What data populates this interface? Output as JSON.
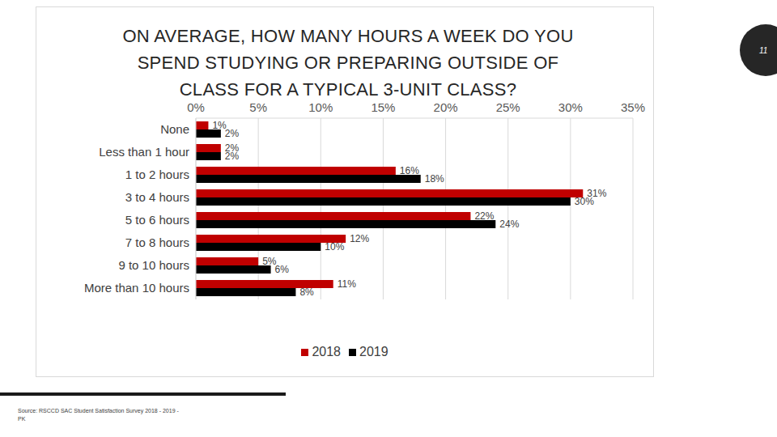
{
  "chart_data": {
    "type": "bar",
    "orientation": "horizontal",
    "title": "ON AVERAGE, HOW MANY HOURS A WEEK DO YOU SPEND STUDYING OR PREPARING OUTSIDE OF CLASS FOR A TYPICAL 3-UNIT CLASS?",
    "categories": [
      "None",
      "Less than 1 hour",
      "1 to 2 hours",
      "3 to 4 hours",
      "5 to 6 hours",
      "7 to 8 hours",
      "9 to 10 hours",
      "More than 10 hours"
    ],
    "series": [
      {
        "name": "2018",
        "color": "#c00000",
        "values": [
          1,
          2,
          16,
          31,
          22,
          12,
          5,
          11
        ],
        "value_labels": [
          "1%",
          "2%",
          "16%",
          "31%",
          "22%",
          "12%",
          "5%",
          "11%"
        ]
      },
      {
        "name": "2019",
        "color": "#000000",
        "values": [
          2,
          2,
          18,
          30,
          24,
          10,
          6,
          8
        ],
        "value_labels": [
          "2%",
          "2%",
          "18%",
          "30%",
          "24%",
          "10%",
          "6%",
          "8%"
        ]
      }
    ],
    "xlim": [
      0,
      35
    ],
    "xticks": [
      {
        "value": 0,
        "label": "0%"
      },
      {
        "value": 5,
        "label": "5%"
      },
      {
        "value": 10,
        "label": "10%"
      },
      {
        "value": 15,
        "label": "15%"
      },
      {
        "value": 20,
        "label": "20%"
      },
      {
        "value": 25,
        "label": "25%"
      },
      {
        "value": 30,
        "label": "30%"
      },
      {
        "value": 35,
        "label": "35%"
      }
    ],
    "grid": true,
    "legend": "bottom",
    "data_labels": true
  },
  "slide": {
    "page_number": "11",
    "source": "Source: RSCCD SAC Student Satisfaction Survey 2018 - 2019 - PK"
  }
}
